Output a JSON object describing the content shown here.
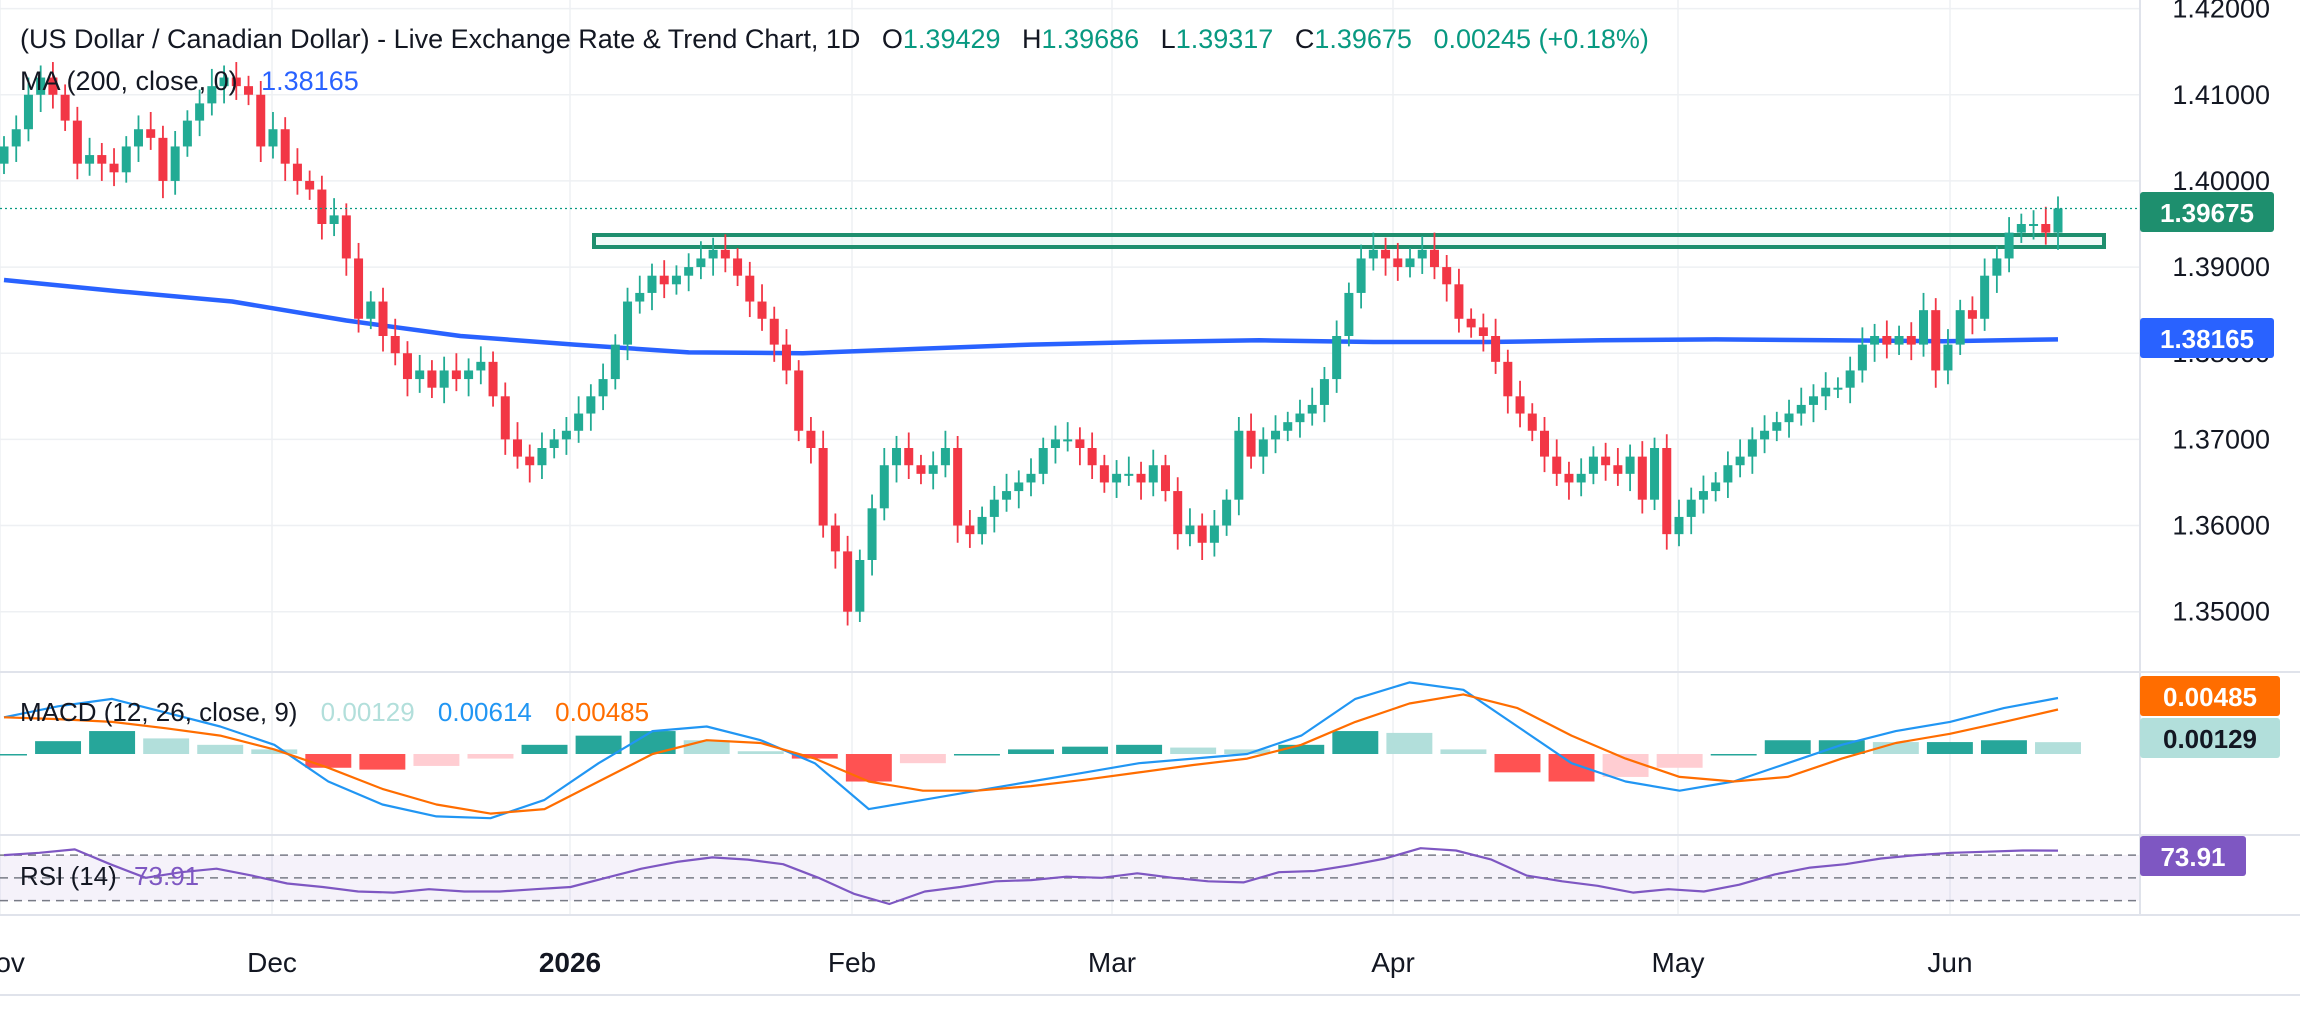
{
  "header": {
    "title": "(US Dollar / Canadian Dollar) - Live Exchange Rate & Trend Chart, 1D",
    "ohlc": [
      {
        "label": "O",
        "value": "1.39429"
      },
      {
        "label": "H",
        "value": "1.39686"
      },
      {
        "label": "L",
        "value": "1.39317"
      },
      {
        "label": "C",
        "value": "1.39675"
      }
    ],
    "change": "0.00245 (+0.18%)",
    "ma_label": "MA (200, close, 0)",
    "ma_value": "1.38165"
  },
  "price_badges": {
    "last": "1.39675",
    "ma": "1.38165"
  },
  "macd": {
    "label": "MACD (12, 26, close, 9)",
    "hist": "0.00129",
    "macd": "0.00614",
    "signal": "0.00485",
    "badge_signal": "0.00485",
    "badge_hist": "0.00129"
  },
  "rsi": {
    "label": "RSI (14)",
    "value": "73.91",
    "badge": "73.91"
  },
  "x_labels": [
    "Nov",
    "Dec",
    "2026",
    "Feb",
    "Mar",
    "Apr",
    "May",
    "Jun"
  ],
  "colors": {
    "up": "#22ab94",
    "down": "#f23645",
    "ma": "#2962ff",
    "macd": "#2196f3",
    "signal": "#ff6d00",
    "rsi": "#7e57c2",
    "zone": "#1e8f6e",
    "text": "#131722",
    "green_text": "#089981",
    "grid": "#eef0f3"
  },
  "chart_data": [
    {
      "type": "candlestick",
      "title": "(US Dollar / Canadian Dollar) - Live Exchange Rate & Trend Chart, 1D",
      "ylim": [
        1.343,
        1.421
      ],
      "y_ticks": [
        "1.42000",
        "1.41000",
        "1.40000",
        "1.39000",
        "1.38000",
        "1.37000",
        "1.36000",
        "1.35000"
      ],
      "x_ticks": [
        "Nov",
        "Dec",
        "2026",
        "Feb",
        "Mar",
        "Apr",
        "May",
        "Jun"
      ],
      "series": [
        {
          "name": "USD/CAD",
          "close": [
            1.404,
            1.406,
            1.41,
            1.412,
            1.41,
            1.407,
            1.402,
            1.403,
            1.402,
            1.401,
            1.404,
            1.406,
            1.405,
            1.4,
            1.404,
            1.407,
            1.409,
            1.411,
            1.412,
            1.411,
            1.41,
            1.404,
            1.406,
            1.402,
            1.4,
            1.399,
            1.395,
            1.396,
            1.391,
            1.384,
            1.386,
            1.382,
            1.38,
            1.377,
            1.378,
            1.376,
            1.378,
            1.377,
            1.378,
            1.379,
            1.375,
            1.37,
            1.368,
            1.367,
            1.369,
            1.37,
            1.371,
            1.373,
            1.375,
            1.377,
            1.381,
            1.386,
            1.387,
            1.389,
            1.388,
            1.389,
            1.39,
            1.391,
            1.392,
            1.391,
            1.389,
            1.386,
            1.384,
            1.381,
            1.378,
            1.371,
            1.369,
            1.36,
            1.357,
            1.35,
            1.356,
            1.362,
            1.367,
            1.369,
            1.367,
            1.366,
            1.367,
            1.369,
            1.36,
            1.359,
            1.361,
            1.363,
            1.364,
            1.365,
            1.366,
            1.369,
            1.37,
            1.37,
            1.369,
            1.367,
            1.365,
            1.366,
            1.366,
            1.365,
            1.367,
            1.364,
            1.359,
            1.36,
            1.358,
            1.36,
            1.363,
            1.371,
            1.368,
            1.37,
            1.371,
            1.372,
            1.373,
            1.374,
            1.377,
            1.382,
            1.387,
            1.391,
            1.392,
            1.391,
            1.39,
            1.391,
            1.392,
            1.39,
            1.388,
            1.384,
            1.383,
            1.382,
            1.379,
            1.375,
            1.373,
            1.371,
            1.368,
            1.366,
            1.365,
            1.366,
            1.368,
            1.367,
            1.366,
            1.368,
            1.363,
            1.369,
            1.359,
            1.361,
            1.363,
            1.364,
            1.365,
            1.367,
            1.368,
            1.37,
            1.371,
            1.372,
            1.373,
            1.374,
            1.375,
            1.376,
            1.376,
            1.378,
            1.381,
            1.382,
            1.381,
            1.382,
            1.381,
            1.385,
            1.378,
            1.381,
            1.385,
            1.384,
            1.389,
            1.391,
            1.394,
            1.395,
            1.395,
            1.394,
            1.3968
          ]
        },
        {
          "name": "MA (200, close, 0)",
          "values": [
            1.3885,
            1.3872,
            1.386,
            1.3838,
            1.382,
            1.381,
            1.3801,
            1.38,
            1.3805,
            1.381,
            1.3813,
            1.3815,
            1.3813,
            1.3813,
            1.3815,
            1.3816,
            1.3815,
            1.3814,
            1.3816
          ]
        }
      ]
    },
    {
      "type": "line",
      "title": "MACD (12, 26, close, 9)",
      "series": [
        {
          "name": "MACD",
          "values": [
            0.004,
            0.0052,
            0.006,
            0.0045,
            0.003,
            0.001,
            -0.003,
            -0.0055,
            -0.0068,
            -0.007,
            -0.005,
            -0.001,
            0.0025,
            0.003,
            0.0015,
            -0.001,
            -0.006,
            -0.005,
            -0.004,
            -0.003,
            -0.002,
            -0.001,
            -0.0005,
            0.0,
            0.002,
            0.006,
            0.0078,
            0.007,
            0.003,
            -0.001,
            -0.003,
            -0.004,
            -0.003,
            -0.001,
            0.001,
            0.0025,
            0.0035,
            0.005,
            0.0061
          ]
        },
        {
          "name": "Signal",
          "values": [
            0.004,
            0.0038,
            0.0035,
            0.0028,
            0.002,
            0.0005,
            -0.0015,
            -0.0038,
            -0.0055,
            -0.0065,
            -0.006,
            -0.003,
            0.0,
            0.0015,
            0.0012,
            -0.0005,
            -0.003,
            -0.004,
            -0.004,
            -0.0035,
            -0.0028,
            -0.002,
            -0.0012,
            -0.0005,
            0.001,
            0.0035,
            0.0055,
            0.0065,
            0.005,
            0.002,
            -0.0005,
            -0.0025,
            -0.003,
            -0.0025,
            -0.0005,
            0.0012,
            0.0022,
            0.0035,
            0.00485
          ]
        },
        {
          "name": "Histogram",
          "values": [
            0.0,
            0.0014,
            0.0025,
            0.0017,
            0.001,
            0.0005,
            -0.0015,
            -0.0017,
            -0.0013,
            -0.0005,
            0.001,
            0.002,
            0.0025,
            0.0015,
            0.0003,
            -0.0005,
            -0.003,
            -0.001,
            0.0,
            0.0005,
            0.0008,
            0.001,
            0.0007,
            0.0005,
            0.001,
            0.0025,
            0.0023,
            0.0005,
            -0.002,
            -0.003,
            -0.0025,
            -0.0015,
            0.0,
            0.0015,
            0.0015,
            0.0013,
            0.0013,
            0.0015,
            0.00129
          ]
        }
      ]
    },
    {
      "type": "line",
      "title": "RSI (14)",
      "ylim": [
        20,
        85
      ],
      "levels": [
        70,
        50,
        30
      ],
      "series": [
        {
          "name": "RSI",
          "values": [
            70,
            72,
            75,
            62,
            50,
            55,
            58,
            52,
            45,
            42,
            38,
            37,
            40,
            38,
            38,
            40,
            42,
            50,
            58,
            64,
            68,
            66,
            62,
            50,
            36,
            27,
            38,
            42,
            47,
            48,
            51,
            50,
            54,
            50,
            47,
            46,
            55,
            56,
            61,
            67,
            76,
            74,
            66,
            52,
            47,
            43,
            37,
            40,
            38,
            44,
            53,
            59,
            62,
            67,
            70,
            72,
            73,
            74,
            73.91
          ]
        }
      ]
    }
  ]
}
